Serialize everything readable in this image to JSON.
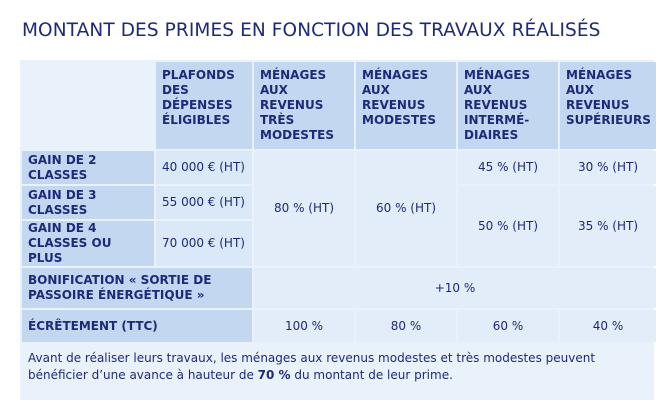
{
  "title": "MONTANT DES PRIMES EN FONCTION DES TRAVAUX RÉALISÉS",
  "headers": {
    "plafonds": "PLAFONDS DES DÉPENSES ÉLIGIBLES",
    "tres_modestes": "MÉNAGES AUX REVENUS TRÈS MODESTES",
    "modestes": "MÉNAGES AUX REVENUS MODESTES",
    "intermediaires": "MÉNAGES AUX REVENUS INTERMÉ-DIAIRES",
    "superieurs": "MÉNAGES AUX REVENUS SUPÉRIEURS"
  },
  "rows": {
    "gain2": {
      "label": "GAIN DE 2 CLASSES",
      "plafond": "40 000 € (HT)"
    },
    "gain3": {
      "label": "GAIN DE 3 CLASSES",
      "plafond": "55 000 € (HT)"
    },
    "gain4": {
      "label": "GAIN DE 4 CLASSES OU PLUS",
      "plafond": "70 000 € (HT)"
    }
  },
  "values": {
    "tres_modestes": "80 % (HT)",
    "modestes": "60 % (HT)",
    "intermediaires_gain2": "45 % (HT)",
    "intermediaires_gain3_4": "50 % (HT)",
    "superieurs_gain2": "30 % (HT)",
    "superieurs_gain3_4": "35 % (HT)"
  },
  "bonification": {
    "label": "BONIFICATION « SORTIE DE PASSOIRE ÉNERGÉTIQUE »",
    "value": "+10 %"
  },
  "ecretement": {
    "label": "ÉCRÊTEMENT (TTC)",
    "tres_modestes": "100 %",
    "modestes": "80 %",
    "intermediaires": "60 %",
    "superieurs": "40 %"
  },
  "note": {
    "before": "Avant de réaliser leurs travaux, les ménages aux revenus modestes et très modestes peuvent bénéficier d’une avance à hauteur de ",
    "bold": "70 %",
    "after": " du montant de leur prime."
  }
}
